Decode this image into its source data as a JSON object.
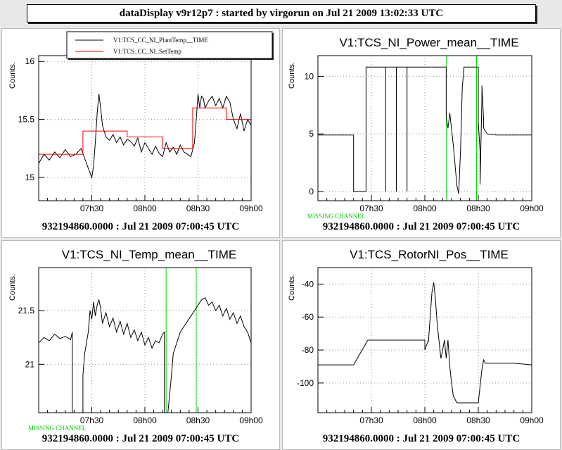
{
  "window_title": "dataDisplay v9r12p7 : started by virgorun on Jul 21 2009 13:02:33 UTC",
  "panels": [
    {
      "title": "",
      "footer": "932194860.0000 : Jul 21 2009 07:00:45 UTC",
      "missing_label": "",
      "chart_data": {
        "type": "line",
        "ylabel": "Counts.",
        "x_tick_labels": [
          "07h30",
          "08h00",
          "08h30",
          "09h00"
        ],
        "x_ticks_min": [
          30,
          60,
          90,
          120
        ],
        "xlim_min": [
          0,
          120
        ],
        "ylim": [
          14.8,
          16.05
        ],
        "y_ticks": [
          15,
          15.5,
          16
        ],
        "y_tick_labels": [
          "15",
          "15.5",
          "16"
        ],
        "legend": "top",
        "series": [
          {
            "name": "V1:TCS_CC_NI_PlantTemp__TIME",
            "color": "#000000",
            "x": [
              0,
              3,
              6,
              9,
              12,
              15,
              18,
              21,
              24,
              27,
              30,
              31,
              32,
              33,
              34,
              35,
              36,
              38,
              40,
              42,
              44,
              46,
              48,
              50,
              52,
              54,
              56,
              58,
              60,
              62,
              64,
              66,
              68,
              70,
              72,
              74,
              76,
              78,
              80,
              82,
              84,
              86,
              88,
              89,
              90,
              91,
              92,
              93,
              94,
              96,
              98,
              100,
              102,
              104,
              106,
              108,
              110,
              112,
              114,
              116,
              118,
              120
            ],
            "y": [
              15.12,
              15.2,
              15.15,
              15.22,
              15.17,
              15.24,
              15.18,
              15.2,
              15.25,
              15.12,
              15.0,
              15.1,
              15.3,
              15.55,
              15.72,
              15.6,
              15.45,
              15.35,
              15.32,
              15.37,
              15.3,
              15.35,
              15.28,
              15.33,
              15.31,
              15.27,
              15.34,
              15.22,
              15.3,
              15.25,
              15.2,
              15.27,
              15.21,
              15.18,
              15.3,
              15.22,
              15.26,
              15.2,
              15.28,
              15.22,
              15.2,
              15.18,
              15.3,
              15.5,
              15.72,
              15.6,
              15.7,
              15.68,
              15.6,
              15.66,
              15.7,
              15.62,
              15.68,
              15.6,
              15.7,
              15.65,
              15.5,
              15.42,
              15.55,
              15.4,
              15.5,
              15.45
            ]
          },
          {
            "name": "V1:TCS_CC_NI_SetTemp",
            "color": "#ff0000",
            "step": true,
            "x": [
              0,
              25,
              25,
              50,
              50,
              70,
              70,
              87,
              87,
              106,
              106,
              120
            ],
            "y": [
              15.2,
              15.2,
              15.4,
              15.4,
              15.35,
              15.35,
              15.25,
              15.25,
              15.6,
              15.6,
              15.5,
              15.5
            ]
          }
        ]
      }
    },
    {
      "title": "V1:TCS_NI_Power_mean__TIME",
      "footer": "932194860.0000 : Jul 21 2009 07:00:45 UTC",
      "missing_label": "MISSING CHANNEL",
      "chart_data": {
        "type": "line",
        "ylabel": "Counts.",
        "x_tick_labels": [
          "07h30",
          "08h00",
          "08h30",
          "09h00"
        ],
        "x_ticks_min": [
          30,
          60,
          90,
          120
        ],
        "xlim_min": [
          0,
          120
        ],
        "ylim": [
          -0.8,
          11.8
        ],
        "y_ticks": [
          0,
          5,
          10
        ],
        "y_tick_labels": [
          "0",
          "5",
          "10"
        ],
        "missing_x_min": [
          72,
          89
        ],
        "series": [
          {
            "name": "",
            "color": "#000000",
            "x": [
              0,
              20,
              20,
              27,
              27,
              38,
              38,
              38,
              38,
              44,
              44,
              44,
              44,
              50,
              50,
              50,
              50,
              72,
              72,
              73,
              74,
              76,
              78,
              79,
              80,
              81,
              82,
              83,
              84,
              86,
              90,
              90,
              91,
              91,
              92,
              92,
              93,
              93,
              95,
              100,
              105,
              120
            ],
            "y": [
              4.9,
              4.9,
              0,
              0,
              10.8,
              10.8,
              0,
              10.8,
              10.8,
              10.8,
              0,
              10.8,
              10.8,
              10.8,
              0,
              10.8,
              10.8,
              10.8,
              6.5,
              5.5,
              6.8,
              4,
              0.5,
              -0.2,
              3.5,
              9,
              10.8,
              10.8,
              10.8,
              10.8,
              10.8,
              6,
              3.5,
              0.6,
              8,
              9.2,
              6.2,
              5.5,
              5,
              4.9,
              4.9,
              4.9
            ]
          }
        ]
      }
    },
    {
      "title": "V1:TCS_NI_Temp_mean__TIME",
      "footer": "932194860.0000 : Jul 21 2009 07:00:45 UTC",
      "missing_label": "MISSING CHANNEL",
      "chart_data": {
        "type": "line",
        "ylabel": "Counts.",
        "x_tick_labels": [
          "07h30",
          "08h00",
          "08h30",
          "09h00"
        ],
        "x_ticks_min": [
          30,
          60,
          90,
          120
        ],
        "xlim_min": [
          0,
          120
        ],
        "ylim": [
          20.55,
          21.9
        ],
        "y_ticks": [
          21,
          21.5
        ],
        "y_tick_labels": [
          "21",
          "21.5"
        ],
        "missing_x_min": [
          72,
          89
        ],
        "series": [
          {
            "name": "",
            "color": "#000000",
            "x": [
              0,
              3,
              6,
              9,
              12,
              15,
              18,
              19,
              19,
              25,
              25,
              26,
              28,
              29,
              30,
              31,
              32,
              33,
              34,
              35,
              36,
              38,
              40,
              42,
              44,
              46,
              48,
              50,
              52,
              54,
              56,
              58,
              60,
              62,
              64,
              66,
              68,
              70,
              71,
              71,
              73,
              75,
              76,
              78,
              80,
              82,
              84,
              86,
              88,
              90,
              92,
              94,
              96,
              98,
              100,
              102,
              104,
              106,
              108,
              110,
              112,
              114,
              116,
              118,
              120
            ],
            "y": [
              21.2,
              21.25,
              21.22,
              21.28,
              21.24,
              21.26,
              21.23,
              21.3,
              20.55,
              20.55,
              20.9,
              21.1,
              21.3,
              21.5,
              21.42,
              21.58,
              21.45,
              21.55,
              21.6,
              21.52,
              21.38,
              21.48,
              21.35,
              21.43,
              21.3,
              21.4,
              21.28,
              21.38,
              21.25,
              21.32,
              21.22,
              21.3,
              21.18,
              21.25,
              21.15,
              21.22,
              21.2,
              21.28,
              21.3,
              20.55,
              20.55,
              20.9,
              21.1,
              21.2,
              21.3,
              21.35,
              21.4,
              21.45,
              21.5,
              21.55,
              21.6,
              21.62,
              21.55,
              21.58,
              21.5,
              21.55,
              21.45,
              21.52,
              21.42,
              21.48,
              21.38,
              21.45,
              21.35,
              21.3,
              21.2
            ]
          }
        ]
      }
    },
    {
      "title": "V1:TCS_RotorNI_Pos__TIME",
      "footer": "932194860.0000 : Jul 21 2009 07:00:45 UTC",
      "missing_label": "",
      "chart_data": {
        "type": "line",
        "ylabel": "Counts.",
        "x_tick_labels": [
          "07h30",
          "08h00",
          "08h30",
          "09h00"
        ],
        "x_ticks_min": [
          30,
          60,
          90,
          120
        ],
        "xlim_min": [
          0,
          120
        ],
        "ylim": [
          -118,
          -30
        ],
        "y_ticks": [
          -100,
          -80,
          -60,
          -40
        ],
        "y_tick_labels": [
          "-100",
          "-80",
          "-60",
          "-40"
        ],
        "series": [
          {
            "name": "",
            "color": "#000000",
            "x": [
              0,
              20,
              28,
              60,
              60,
              62,
              62,
              63,
              64,
              65,
              66,
              67,
              68,
              69,
              70,
              71,
              72,
              73,
              74,
              75,
              76,
              77,
              78,
              80,
              85,
              90,
              91,
              92,
              93,
              94,
              96,
              100,
              110,
              120
            ],
            "y": [
              -89,
              -89,
              -74,
              -74,
              -80,
              -74,
              -75,
              -60,
              -45,
              -39,
              -50,
              -65,
              -75,
              -85,
              -80,
              -74,
              -85,
              -74,
              -90,
              -100,
              -108,
              -110,
              -112,
              -112,
              -112,
              -112,
              -102,
              -92,
              -86,
              -88,
              -88,
              -88,
              -88,
              -89
            ]
          }
        ]
      }
    }
  ]
}
